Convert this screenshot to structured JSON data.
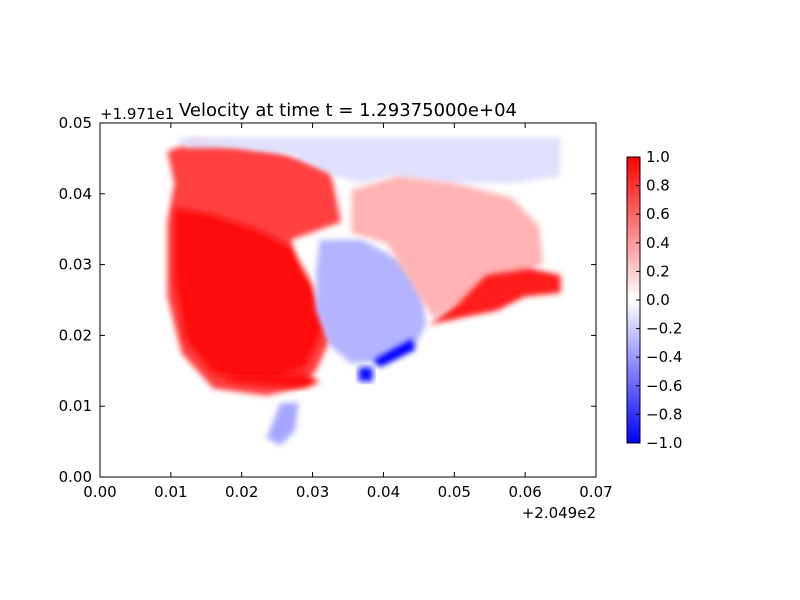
{
  "chart_data": {
    "type": "heatmap",
    "title": "Velocity at time t = 1.29375000e+04",
    "x_offset_label": "+2.049e2",
    "y_offset_label": "+1.971e1",
    "xlim": [
      0.0,
      0.07
    ],
    "ylim": [
      0.0,
      0.05
    ],
    "x_ticks": [
      0.0,
      0.01,
      0.02,
      0.03,
      0.04,
      0.05,
      0.06,
      0.07
    ],
    "x_tick_labels": [
      "0.00",
      "0.01",
      "0.02",
      "0.03",
      "0.04",
      "0.05",
      "0.06",
      "0.07"
    ],
    "y_ticks": [
      0.0,
      0.01,
      0.02,
      0.03,
      0.04,
      0.05
    ],
    "y_tick_labels": [
      "0.00",
      "0.01",
      "0.02",
      "0.03",
      "0.04",
      "0.05"
    ],
    "grid": false,
    "colormap": "bwr",
    "colorbar": {
      "min": -1.0,
      "max": 1.0,
      "ticks": [
        1.0,
        0.8,
        0.6,
        0.4,
        0.2,
        0.0,
        -0.2,
        -0.4,
        -0.6,
        -0.8,
        -1.0
      ],
      "tick_labels": [
        "1.0",
        "0.8",
        "0.6",
        "0.4",
        "0.2",
        "0.0",
        "−0.2",
        "−0.4",
        "−0.6",
        "−0.8",
        "−1.0"
      ],
      "colors": {
        "low": "#0000ff",
        "mid": "#ffffff",
        "high": "#ff0000"
      }
    },
    "regions": [
      {
        "name": "west-lobe",
        "value": 0.75,
        "polygon": [
          [
            0.0095,
            0.046
          ],
          [
            0.0135,
            0.0475
          ],
          [
            0.025,
            0.046
          ],
          [
            0.0325,
            0.0435
          ],
          [
            0.034,
            0.036
          ],
          [
            0.027,
            0.0335
          ],
          [
            0.0275,
            0.029
          ],
          [
            0.0305,
            0.024
          ],
          [
            0.0325,
            0.0195
          ],
          [
            0.0305,
            0.015
          ],
          [
            0.028,
            0.0125
          ],
          [
            0.0235,
            0.0115
          ],
          [
            0.016,
            0.0125
          ],
          [
            0.0115,
            0.0175
          ],
          [
            0.0095,
            0.0255
          ],
          [
            0.0095,
            0.036
          ],
          [
            0.0105,
            0.0415
          ]
        ]
      },
      {
        "name": "west-core",
        "value": 0.95,
        "polygon": [
          [
            0.0105,
            0.038
          ],
          [
            0.016,
            0.037
          ],
          [
            0.022,
            0.035
          ],
          [
            0.027,
            0.0325
          ],
          [
            0.03,
            0.027
          ],
          [
            0.0315,
            0.021
          ],
          [
            0.029,
            0.0155
          ],
          [
            0.024,
            0.0135
          ],
          [
            0.016,
            0.0145
          ],
          [
            0.012,
            0.0195
          ],
          [
            0.0105,
            0.028
          ]
        ]
      },
      {
        "name": "north-band",
        "value": -0.12,
        "polygon": [
          [
            0.011,
            0.048
          ],
          [
            0.065,
            0.048
          ],
          [
            0.065,
            0.0425
          ],
          [
            0.058,
            0.0415
          ],
          [
            0.048,
            0.0415
          ],
          [
            0.041,
            0.0425
          ],
          [
            0.037,
            0.0415
          ],
          [
            0.033,
            0.0425
          ],
          [
            0.027,
            0.0455
          ],
          [
            0.019,
            0.0465
          ],
          [
            0.012,
            0.0465
          ]
        ]
      },
      {
        "name": "central-basin",
        "value": -0.3,
        "polygon": [
          [
            0.031,
            0.0335
          ],
          [
            0.037,
            0.0335
          ],
          [
            0.0425,
            0.0305
          ],
          [
            0.0455,
            0.026
          ],
          [
            0.046,
            0.0215
          ],
          [
            0.0445,
            0.0185
          ],
          [
            0.0405,
            0.0165
          ],
          [
            0.0355,
            0.016
          ],
          [
            0.0325,
            0.0185
          ],
          [
            0.0305,
            0.0235
          ],
          [
            0.0305,
            0.029
          ]
        ]
      },
      {
        "name": "east-shelf",
        "value": 0.3,
        "polygon": [
          [
            0.0355,
            0.0405
          ],
          [
            0.042,
            0.0425
          ],
          [
            0.05,
            0.0415
          ],
          [
            0.058,
            0.0395
          ],
          [
            0.062,
            0.0355
          ],
          [
            0.0625,
            0.03
          ],
          [
            0.057,
            0.0285
          ],
          [
            0.052,
            0.0255
          ],
          [
            0.047,
            0.0225
          ],
          [
            0.0445,
            0.0265
          ],
          [
            0.0405,
            0.033
          ],
          [
            0.0355,
            0.0345
          ]
        ]
      },
      {
        "name": "east-jet",
        "value": 0.9,
        "polygon": [
          [
            0.0545,
            0.0285
          ],
          [
            0.0605,
            0.0295
          ],
          [
            0.065,
            0.0285
          ],
          [
            0.065,
            0.026
          ],
          [
            0.06,
            0.0255
          ],
          [
            0.056,
            0.0235
          ],
          [
            0.051,
            0.0225
          ],
          [
            0.0465,
            0.0215
          ],
          [
            0.0505,
            0.0245
          ]
        ]
      },
      {
        "name": "south-plume",
        "value": -0.35,
        "polygon": [
          [
            0.0255,
            0.0105
          ],
          [
            0.028,
            0.0105
          ],
          [
            0.0275,
            0.0065
          ],
          [
            0.0255,
            0.0045
          ],
          [
            0.0235,
            0.0055
          ],
          [
            0.0245,
            0.008
          ]
        ]
      },
      {
        "name": "coastal-jet",
        "value": -1.0,
        "polygon": [
          [
            0.0385,
            0.0165
          ],
          [
            0.044,
            0.0195
          ],
          [
            0.0445,
            0.018
          ],
          [
            0.0395,
            0.0155
          ]
        ]
      },
      {
        "name": "coastal-jet-tip",
        "value": -0.95,
        "polygon": [
          [
            0.0365,
            0.0155
          ],
          [
            0.0385,
            0.0155
          ],
          [
            0.0385,
            0.0135
          ],
          [
            0.0365,
            0.0135
          ]
        ]
      },
      {
        "name": "south-rim",
        "value": 0.95,
        "polygon": [
          [
            0.0175,
            0.0135
          ],
          [
            0.029,
            0.0125
          ],
          [
            0.031,
            0.0135
          ],
          [
            0.029,
            0.0145
          ],
          [
            0.0185,
            0.0145
          ]
        ]
      }
    ]
  }
}
